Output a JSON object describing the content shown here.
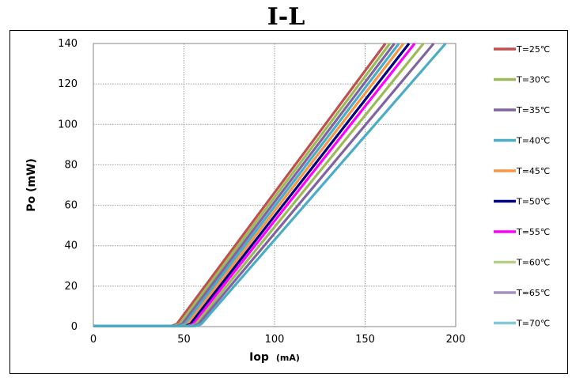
{
  "chart_data": {
    "type": "line",
    "title": "I-L",
    "xlabel_main": "Iop",
    "xlabel_unit": "(mA)",
    "ylabel": "Po (mW)",
    "xlim": [
      0,
      200
    ],
    "ylim": [
      0,
      140
    ],
    "xticks": [
      0,
      50,
      100,
      150,
      200
    ],
    "yticks": [
      0,
      20,
      40,
      60,
      80,
      100,
      120,
      140
    ],
    "grid": true,
    "legend_position": "right",
    "series": [
      {
        "name": "T=25℃",
        "color": "#C0504D",
        "threshold": 45,
        "slope": 1.205,
        "pmax_current": 162
      },
      {
        "name": "T=30℃",
        "color": "#9BBB59",
        "threshold": 46.5,
        "slope": 1.195,
        "pmax_current": 164
      },
      {
        "name": "T=35℃",
        "color": "#8064A2",
        "threshold": 48,
        "slope": 1.185,
        "pmax_current": 166
      },
      {
        "name": "T=40℃",
        "color": "#4BACC6",
        "threshold": 49.5,
        "slope": 1.175,
        "pmax_current": 168
      },
      {
        "name": "T=45℃",
        "color": "#F79646",
        "threshold": 51,
        "slope": 1.165,
        "pmax_current": 171
      },
      {
        "name": "T=50℃",
        "color": "#000080",
        "threshold": 52.5,
        "slope": 1.15,
        "pmax_current": 175
      },
      {
        "name": "T=55℃",
        "color": "#FF00FF",
        "threshold": 54,
        "slope": 1.135,
        "pmax_current": 179
      },
      {
        "name": "T=60℃",
        "color": "#9BBB59",
        "threshold": 55.5,
        "slope": 1.105,
        "pmax_current": 184
      },
      {
        "name": "T=65℃",
        "color": "#8064A2",
        "threshold": 57,
        "slope": 1.07,
        "pmax_current": 189
      },
      {
        "name": "T=70℃",
        "color": "#4BACC6",
        "threshold": 58.5,
        "slope": 1.03,
        "pmax_current": 196
      }
    ],
    "legend_colors_display": [
      "#C0504D",
      "#9BBB59",
      "#8064A2",
      "#4BACC6",
      "#F79646",
      "#000080",
      "#FF00FF",
      "#B5CE8A",
      "#A392BE",
      "#86C8DA"
    ]
  }
}
